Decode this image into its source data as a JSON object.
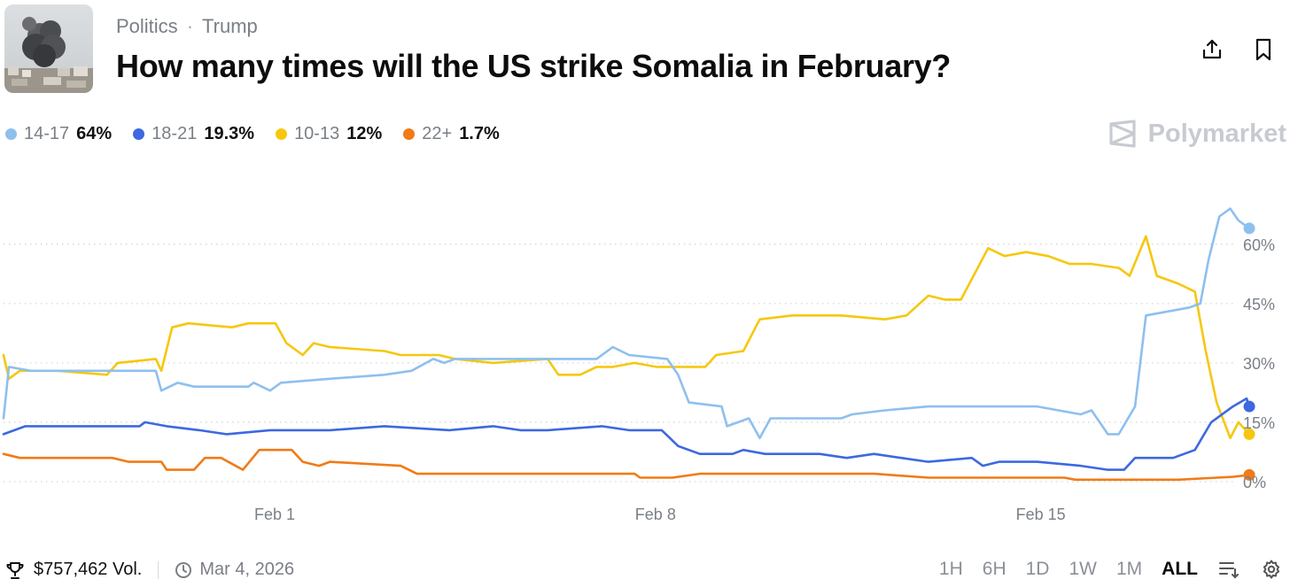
{
  "header": {
    "breadcrumb": [
      "Politics",
      "Trump"
    ],
    "title": "How many times will the US strike Somalia in February?"
  },
  "watermark": "Polymarket",
  "chart_data": {
    "type": "line",
    "y_unit": "%",
    "ylim": [
      0,
      70
    ],
    "yticks": [
      0,
      15,
      30,
      45,
      60
    ],
    "ytick_labels": [
      "0%",
      "15%",
      "30%",
      "45%",
      "60%"
    ],
    "xlim": [
      "Jan 27",
      "Feb 20"
    ],
    "xticks": [
      "Feb 1",
      "Feb 8",
      "Feb 15"
    ],
    "grid": "horizontal dotted",
    "legend": "top-left",
    "series": [
      {
        "name": "14-17",
        "current": "64%",
        "color": "#8ec0ee",
        "points": [
          [
            0,
            16
          ],
          [
            0.1,
            29
          ],
          [
            0.5,
            28
          ],
          [
            2.5,
            28
          ],
          [
            2.8,
            28
          ],
          [
            2.9,
            23
          ],
          [
            3.2,
            25
          ],
          [
            3.5,
            24
          ],
          [
            4.5,
            24
          ],
          [
            4.6,
            25
          ],
          [
            4.9,
            23
          ],
          [
            5.1,
            25
          ],
          [
            6,
            26
          ],
          [
            7,
            27
          ],
          [
            7.5,
            28
          ],
          [
            7.9,
            31
          ],
          [
            8.1,
            30
          ],
          [
            8.3,
            31
          ],
          [
            9,
            31
          ],
          [
            10,
            31
          ],
          [
            10.9,
            31
          ],
          [
            11.2,
            34
          ],
          [
            11.5,
            32
          ],
          [
            12.2,
            31
          ],
          [
            12.4,
            27
          ],
          [
            12.6,
            20
          ],
          [
            13.2,
            19
          ],
          [
            13.3,
            14
          ],
          [
            13.7,
            16
          ],
          [
            13.9,
            11
          ],
          [
            14.1,
            16
          ],
          [
            15,
            16
          ],
          [
            15.4,
            16
          ],
          [
            15.6,
            17
          ],
          [
            16.2,
            18
          ],
          [
            17,
            19
          ],
          [
            18,
            19
          ],
          [
            19,
            19
          ],
          [
            19.8,
            17
          ],
          [
            20,
            18
          ],
          [
            20.3,
            12
          ],
          [
            20.5,
            12
          ],
          [
            20.8,
            19
          ],
          [
            21,
            42
          ],
          [
            21.4,
            43
          ],
          [
            21.8,
            44
          ],
          [
            22,
            45
          ],
          [
            22.15,
            56
          ],
          [
            22.35,
            67
          ],
          [
            22.55,
            69
          ],
          [
            22.7,
            66
          ],
          [
            22.9,
            64
          ]
        ]
      },
      {
        "name": "18-21",
        "current": "19.3%",
        "color": "#3d68e0",
        "points": [
          [
            0,
            12
          ],
          [
            0.4,
            14
          ],
          [
            1.5,
            14
          ],
          [
            2.5,
            14
          ],
          [
            2.6,
            15
          ],
          [
            3,
            14
          ],
          [
            3.6,
            13
          ],
          [
            4.1,
            12
          ],
          [
            4.9,
            13
          ],
          [
            6,
            13
          ],
          [
            7,
            14
          ],
          [
            8.2,
            13
          ],
          [
            9,
            14
          ],
          [
            9.5,
            13
          ],
          [
            10,
            13
          ],
          [
            11,
            14
          ],
          [
            11.5,
            13
          ],
          [
            12.1,
            13
          ],
          [
            12.4,
            9
          ],
          [
            12.8,
            7
          ],
          [
            13.4,
            7
          ],
          [
            13.6,
            8
          ],
          [
            14,
            7
          ],
          [
            15,
            7
          ],
          [
            15.5,
            6
          ],
          [
            16,
            7
          ],
          [
            16.5,
            6
          ],
          [
            17,
            5
          ],
          [
            17.8,
            6
          ],
          [
            18,
            4
          ],
          [
            18.3,
            5
          ],
          [
            19,
            5
          ],
          [
            19.8,
            4
          ],
          [
            20.3,
            3
          ],
          [
            20.6,
            3
          ],
          [
            20.8,
            6
          ],
          [
            21.5,
            6
          ],
          [
            21.9,
            8
          ],
          [
            22.2,
            15
          ],
          [
            22.6,
            19
          ],
          [
            22.85,
            21
          ],
          [
            22.9,
            19
          ]
        ]
      },
      {
        "name": "10-13",
        "current": "12%",
        "color": "#f6c70e",
        "points": [
          [
            0,
            32
          ],
          [
            0.1,
            26
          ],
          [
            0.3,
            28
          ],
          [
            1,
            28
          ],
          [
            1.9,
            27
          ],
          [
            2.1,
            30
          ],
          [
            2.8,
            31
          ],
          [
            2.9,
            28
          ],
          [
            3.1,
            39
          ],
          [
            3.4,
            40
          ],
          [
            4.2,
            39
          ],
          [
            4.5,
            40
          ],
          [
            5,
            40
          ],
          [
            5.2,
            35
          ],
          [
            5.5,
            32
          ],
          [
            5.7,
            35
          ],
          [
            6,
            34
          ],
          [
            7,
            33
          ],
          [
            7.3,
            32
          ],
          [
            8,
            32
          ],
          [
            8.3,
            31
          ],
          [
            9,
            30
          ],
          [
            10,
            31
          ],
          [
            10.2,
            27
          ],
          [
            10.6,
            27
          ],
          [
            10.9,
            29
          ],
          [
            11.2,
            29
          ],
          [
            11.6,
            30
          ],
          [
            12,
            29
          ],
          [
            12.9,
            29
          ],
          [
            13.1,
            32
          ],
          [
            13.6,
            33
          ],
          [
            13.9,
            41
          ],
          [
            14.5,
            42
          ],
          [
            15.4,
            42
          ],
          [
            16.2,
            41
          ],
          [
            16.6,
            42
          ],
          [
            17,
            47
          ],
          [
            17.3,
            46
          ],
          [
            17.6,
            46
          ],
          [
            18.1,
            59
          ],
          [
            18.4,
            57
          ],
          [
            18.8,
            58
          ],
          [
            19.2,
            57
          ],
          [
            19.6,
            55
          ],
          [
            20,
            55
          ],
          [
            20.5,
            54
          ],
          [
            20.7,
            52
          ],
          [
            21,
            62
          ],
          [
            21.2,
            52
          ],
          [
            21.6,
            50
          ],
          [
            21.9,
            48
          ],
          [
            22.1,
            33
          ],
          [
            22.3,
            20
          ],
          [
            22.55,
            11
          ],
          [
            22.7,
            15
          ],
          [
            22.9,
            12
          ]
        ]
      },
      {
        "name": "22+",
        "current": "1.7%",
        "color": "#f07b17",
        "points": [
          [
            0,
            7
          ],
          [
            0.3,
            6
          ],
          [
            1,
            6
          ],
          [
            2,
            6
          ],
          [
            2.3,
            5
          ],
          [
            2.9,
            5
          ],
          [
            3,
            3
          ],
          [
            3.5,
            3
          ],
          [
            3.7,
            6
          ],
          [
            4,
            6
          ],
          [
            4.4,
            3
          ],
          [
            4.7,
            8
          ],
          [
            5.3,
            8
          ],
          [
            5.5,
            5
          ],
          [
            5.8,
            4
          ],
          [
            6,
            5
          ],
          [
            7.3,
            4
          ],
          [
            7.6,
            2
          ],
          [
            8.5,
            2
          ],
          [
            9.5,
            2
          ],
          [
            10.6,
            2
          ],
          [
            11.6,
            2
          ],
          [
            11.7,
            1
          ],
          [
            12.3,
            1
          ],
          [
            12.8,
            2
          ],
          [
            13.8,
            2
          ],
          [
            14.4,
            2
          ],
          [
            15,
            2
          ],
          [
            16,
            2
          ],
          [
            17,
            1
          ],
          [
            18,
            1
          ],
          [
            19,
            1
          ],
          [
            19.5,
            1
          ],
          [
            19.7,
            0.5
          ],
          [
            20.6,
            0.5
          ],
          [
            21.6,
            0.5
          ],
          [
            22.3,
            1
          ],
          [
            22.6,
            1.2
          ],
          [
            22.9,
            1.7
          ]
        ]
      }
    ]
  },
  "footer": {
    "volume": "$757,462 Vol.",
    "date": "Mar 4, 2026",
    "ranges": [
      "1H",
      "6H",
      "1D",
      "1W",
      "1M",
      "ALL"
    ],
    "active_range": "ALL"
  }
}
